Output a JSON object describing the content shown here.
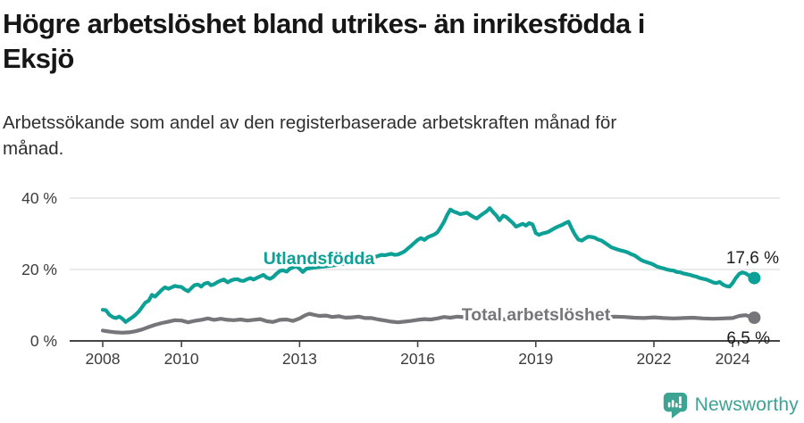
{
  "header": {
    "title_line1": "Högre arbetslöshet bland utrikes- än inrikesfödda i",
    "title_line2": "Eksjö",
    "subtitle_line1": "Arbetssökande som andel av den registerbaserade arbetskraften månad för",
    "subtitle_line2": "månad."
  },
  "footer": {
    "brand": "Newsworthy"
  },
  "colors": {
    "accent_teal": "#0ca096",
    "series_gray": "#76767a",
    "brand_teal": "#3da393",
    "grid": "#e3e3e3",
    "axis": "#454545",
    "axis_text": "#3c3c3c",
    "annotation_text": "#1d1d1d"
  },
  "chart_data": {
    "type": "line",
    "title": "Högre arbetslöshet bland utrikes- än inrikesfödda i Eksjö",
    "subtitle": "Arbetssökande som andel av den registerbaserade arbetskraften månad för månad.",
    "xlabel": "",
    "ylabel": "",
    "grid": "horizontal",
    "legend_position": "inline-labels",
    "x_axis": {
      "range": [
        2007.16,
        2025.2
      ],
      "ticks": [
        2008,
        2010,
        2013,
        2016,
        2019,
        2022,
        2024
      ]
    },
    "y_axis": {
      "range": [
        0,
        40
      ],
      "unit": "%",
      "ticks": [
        {
          "value": 0,
          "label": "0 %"
        },
        {
          "value": 20,
          "label": "20 %"
        },
        {
          "value": 40,
          "label": "40 %"
        }
      ]
    },
    "series": [
      {
        "id": "utlandsfodda",
        "name": "Utlandsfödda",
        "color": "#0ca096",
        "end_label": "17,6 %",
        "latest_value": 17.6,
        "points": [
          [
            2008.0,
            8.7
          ],
          [
            2008.08,
            8.6
          ],
          [
            2008.17,
            7.3
          ],
          [
            2008.25,
            6.7
          ],
          [
            2008.33,
            6.4
          ],
          [
            2008.42,
            6.8
          ],
          [
            2008.5,
            6.2
          ],
          [
            2008.58,
            5.3
          ],
          [
            2008.67,
            6.0
          ],
          [
            2008.75,
            6.6
          ],
          [
            2008.83,
            7.3
          ],
          [
            2008.92,
            8.3
          ],
          [
            2009.0,
            9.5
          ],
          [
            2009.08,
            10.7
          ],
          [
            2009.17,
            11.3
          ],
          [
            2009.25,
            12.9
          ],
          [
            2009.33,
            12.4
          ],
          [
            2009.42,
            13.4
          ],
          [
            2009.5,
            14.3
          ],
          [
            2009.58,
            15.0
          ],
          [
            2009.67,
            14.6
          ],
          [
            2009.75,
            15.0
          ],
          [
            2009.83,
            15.4
          ],
          [
            2009.92,
            15.2
          ],
          [
            2010.0,
            15.1
          ],
          [
            2010.08,
            14.4
          ],
          [
            2010.17,
            13.9
          ],
          [
            2010.25,
            14.8
          ],
          [
            2010.33,
            15.6
          ],
          [
            2010.42,
            15.8
          ],
          [
            2010.5,
            15.2
          ],
          [
            2010.58,
            16.0
          ],
          [
            2010.67,
            16.3
          ],
          [
            2010.75,
            15.6
          ],
          [
            2010.83,
            15.9
          ],
          [
            2010.92,
            16.5
          ],
          [
            2011.0,
            16.9
          ],
          [
            2011.08,
            17.2
          ],
          [
            2011.17,
            16.4
          ],
          [
            2011.25,
            16.9
          ],
          [
            2011.33,
            17.2
          ],
          [
            2011.42,
            17.3
          ],
          [
            2011.5,
            16.9
          ],
          [
            2011.58,
            16.8
          ],
          [
            2011.67,
            17.3
          ],
          [
            2011.75,
            17.6
          ],
          [
            2011.83,
            17.2
          ],
          [
            2011.92,
            17.7
          ],
          [
            2012.0,
            18.1
          ],
          [
            2012.08,
            18.5
          ],
          [
            2012.17,
            17.7
          ],
          [
            2012.25,
            17.4
          ],
          [
            2012.33,
            17.9
          ],
          [
            2012.42,
            18.9
          ],
          [
            2012.5,
            19.6
          ],
          [
            2012.58,
            19.8
          ],
          [
            2012.67,
            19.4
          ],
          [
            2012.75,
            20.2
          ],
          [
            2012.83,
            20.6
          ],
          [
            2012.92,
            20.9
          ],
          [
            2013.0,
            20.2
          ],
          [
            2013.08,
            19.3
          ],
          [
            2013.17,
            20.2
          ],
          [
            2013.33,
            20.5
          ],
          [
            2013.5,
            20.7
          ],
          [
            2013.67,
            20.9
          ],
          [
            2013.83,
            21.1
          ],
          [
            2014.0,
            21.4
          ],
          [
            2014.17,
            21.7
          ],
          [
            2014.33,
            22.0
          ],
          [
            2014.5,
            22.3
          ],
          [
            2014.67,
            22.7
          ],
          [
            2014.83,
            23.2
          ],
          [
            2015.0,
            23.8
          ],
          [
            2015.08,
            24.1
          ],
          [
            2015.17,
            24.0
          ],
          [
            2015.25,
            24.2
          ],
          [
            2015.33,
            24.4
          ],
          [
            2015.42,
            24.1
          ],
          [
            2015.5,
            24.2
          ],
          [
            2015.58,
            24.6
          ],
          [
            2015.67,
            25.1
          ],
          [
            2015.75,
            25.9
          ],
          [
            2015.83,
            26.6
          ],
          [
            2015.92,
            27.5
          ],
          [
            2016.0,
            28.3
          ],
          [
            2016.08,
            28.8
          ],
          [
            2016.17,
            28.3
          ],
          [
            2016.25,
            29.0
          ],
          [
            2016.33,
            29.4
          ],
          [
            2016.42,
            29.8
          ],
          [
            2016.5,
            30.4
          ],
          [
            2016.58,
            31.7
          ],
          [
            2016.67,
            33.4
          ],
          [
            2016.75,
            35.3
          ],
          [
            2016.83,
            36.8
          ],
          [
            2016.92,
            36.2
          ],
          [
            2017.0,
            35.9
          ],
          [
            2017.08,
            35.5
          ],
          [
            2017.17,
            35.7
          ],
          [
            2017.25,
            35.9
          ],
          [
            2017.33,
            35.3
          ],
          [
            2017.42,
            34.7
          ],
          [
            2017.5,
            34.3
          ],
          [
            2017.58,
            35.0
          ],
          [
            2017.67,
            35.7
          ],
          [
            2017.75,
            36.3
          ],
          [
            2017.83,
            37.2
          ],
          [
            2017.92,
            36.0
          ],
          [
            2018.0,
            35.1
          ],
          [
            2018.08,
            33.8
          ],
          [
            2018.17,
            35.1
          ],
          [
            2018.25,
            34.7
          ],
          [
            2018.33,
            33.9
          ],
          [
            2018.42,
            33.0
          ],
          [
            2018.5,
            32.0
          ],
          [
            2018.58,
            32.4
          ],
          [
            2018.67,
            32.8
          ],
          [
            2018.75,
            32.3
          ],
          [
            2018.83,
            33.0
          ],
          [
            2018.92,
            32.6
          ],
          [
            2019.0,
            30.2
          ],
          [
            2019.08,
            29.7
          ],
          [
            2019.17,
            30.1
          ],
          [
            2019.25,
            30.3
          ],
          [
            2019.33,
            30.6
          ],
          [
            2019.42,
            31.2
          ],
          [
            2019.5,
            31.7
          ],
          [
            2019.58,
            32.1
          ],
          [
            2019.67,
            32.5
          ],
          [
            2019.75,
            33.0
          ],
          [
            2019.83,
            33.4
          ],
          [
            2019.92,
            31.3
          ],
          [
            2020.0,
            29.7
          ],
          [
            2020.08,
            28.4
          ],
          [
            2020.17,
            28.1
          ],
          [
            2020.25,
            28.7
          ],
          [
            2020.33,
            29.2
          ],
          [
            2020.42,
            29.1
          ],
          [
            2020.5,
            28.9
          ],
          [
            2020.58,
            28.4
          ],
          [
            2020.67,
            28.1
          ],
          [
            2020.75,
            27.5
          ],
          [
            2020.83,
            26.9
          ],
          [
            2020.92,
            26.2
          ],
          [
            2021.0,
            25.9
          ],
          [
            2021.08,
            25.6
          ],
          [
            2021.17,
            25.3
          ],
          [
            2021.25,
            25.1
          ],
          [
            2021.33,
            24.8
          ],
          [
            2021.42,
            24.3
          ],
          [
            2021.5,
            24.0
          ],
          [
            2021.58,
            23.4
          ],
          [
            2021.67,
            22.7
          ],
          [
            2021.75,
            22.3
          ],
          [
            2021.83,
            22.0
          ],
          [
            2021.92,
            21.7
          ],
          [
            2022.0,
            21.3
          ],
          [
            2022.08,
            20.8
          ],
          [
            2022.17,
            20.5
          ],
          [
            2022.25,
            20.3
          ],
          [
            2022.33,
            20.0
          ],
          [
            2022.42,
            19.8
          ],
          [
            2022.5,
            19.7
          ],
          [
            2022.58,
            19.3
          ],
          [
            2022.67,
            19.2
          ],
          [
            2022.75,
            18.9
          ],
          [
            2022.83,
            18.7
          ],
          [
            2022.92,
            18.5
          ],
          [
            2023.0,
            18.2
          ],
          [
            2023.08,
            18.0
          ],
          [
            2023.17,
            17.6
          ],
          [
            2023.25,
            17.4
          ],
          [
            2023.33,
            17.2
          ],
          [
            2023.42,
            16.8
          ],
          [
            2023.5,
            16.4
          ],
          [
            2023.58,
            16.2
          ],
          [
            2023.67,
            16.5
          ],
          [
            2023.75,
            15.8
          ],
          [
            2023.83,
            15.4
          ],
          [
            2023.92,
            15.2
          ],
          [
            2024.0,
            16.2
          ],
          [
            2024.08,
            17.6
          ],
          [
            2024.17,
            18.8
          ],
          [
            2024.25,
            19.2
          ],
          [
            2024.33,
            18.9
          ],
          [
            2024.42,
            18.3
          ],
          [
            2024.55,
            17.6
          ]
        ]
      },
      {
        "id": "total",
        "name": "Total arbetslöshet",
        "color": "#76767a",
        "end_label": "6,5 %",
        "latest_value": 6.5,
        "points": [
          [
            2008.0,
            2.9
          ],
          [
            2008.17,
            2.6
          ],
          [
            2008.33,
            2.4
          ],
          [
            2008.5,
            2.3
          ],
          [
            2008.67,
            2.4
          ],
          [
            2008.83,
            2.7
          ],
          [
            2009.0,
            3.2
          ],
          [
            2009.17,
            3.9
          ],
          [
            2009.33,
            4.5
          ],
          [
            2009.5,
            5.0
          ],
          [
            2009.67,
            5.4
          ],
          [
            2009.83,
            5.8
          ],
          [
            2010.0,
            5.7
          ],
          [
            2010.17,
            5.2
          ],
          [
            2010.33,
            5.6
          ],
          [
            2010.5,
            5.9
          ],
          [
            2010.67,
            6.3
          ],
          [
            2010.83,
            5.9
          ],
          [
            2011.0,
            6.2
          ],
          [
            2011.17,
            5.9
          ],
          [
            2011.33,
            5.8
          ],
          [
            2011.5,
            6.0
          ],
          [
            2011.67,
            5.7
          ],
          [
            2011.83,
            5.9
          ],
          [
            2012.0,
            6.1
          ],
          [
            2012.17,
            5.5
          ],
          [
            2012.33,
            5.3
          ],
          [
            2012.5,
            5.9
          ],
          [
            2012.67,
            6.0
          ],
          [
            2012.83,
            5.6
          ],
          [
            2013.0,
            6.3
          ],
          [
            2013.08,
            6.8
          ],
          [
            2013.17,
            7.3
          ],
          [
            2013.25,
            7.6
          ],
          [
            2013.33,
            7.4
          ],
          [
            2013.5,
            7.0
          ],
          [
            2013.67,
            7.1
          ],
          [
            2013.83,
            6.7
          ],
          [
            2014.0,
            6.9
          ],
          [
            2014.17,
            6.5
          ],
          [
            2014.33,
            6.6
          ],
          [
            2014.5,
            6.8
          ],
          [
            2014.67,
            6.4
          ],
          [
            2014.83,
            6.4
          ],
          [
            2015.0,
            6.0
          ],
          [
            2015.17,
            5.7
          ],
          [
            2015.33,
            5.4
          ],
          [
            2015.5,
            5.2
          ],
          [
            2015.67,
            5.4
          ],
          [
            2015.83,
            5.6
          ],
          [
            2016.0,
            5.9
          ],
          [
            2016.17,
            6.1
          ],
          [
            2016.33,
            6.0
          ],
          [
            2016.5,
            6.3
          ],
          [
            2016.67,
            6.7
          ],
          [
            2016.83,
            6.5
          ],
          [
            2017.0,
            6.8
          ],
          [
            2017.25,
            6.6
          ],
          [
            2017.5,
            6.5
          ],
          [
            2017.75,
            6.4
          ],
          [
            2018.0,
            6.2
          ],
          [
            2018.25,
            6.0
          ],
          [
            2018.5,
            5.9
          ],
          [
            2018.75,
            6.0
          ],
          [
            2019.0,
            6.1
          ],
          [
            2019.25,
            6.2
          ],
          [
            2019.5,
            6.3
          ],
          [
            2019.75,
            6.2
          ],
          [
            2020.0,
            6.1
          ],
          [
            2020.17,
            6.6
          ],
          [
            2020.33,
            7.0
          ],
          [
            2020.5,
            6.9
          ],
          [
            2020.67,
            6.8
          ],
          [
            2020.83,
            6.7
          ],
          [
            2021.0,
            6.8
          ],
          [
            2021.25,
            6.7
          ],
          [
            2021.5,
            6.5
          ],
          [
            2021.75,
            6.4
          ],
          [
            2022.0,
            6.6
          ],
          [
            2022.25,
            6.4
          ],
          [
            2022.5,
            6.3
          ],
          [
            2022.75,
            6.4
          ],
          [
            2023.0,
            6.5
          ],
          [
            2023.25,
            6.3
          ],
          [
            2023.5,
            6.2
          ],
          [
            2023.75,
            6.3
          ],
          [
            2024.0,
            6.4
          ],
          [
            2024.17,
            7.0
          ],
          [
            2024.33,
            7.2
          ],
          [
            2024.45,
            6.8
          ],
          [
            2024.55,
            6.5
          ]
        ]
      }
    ]
  }
}
